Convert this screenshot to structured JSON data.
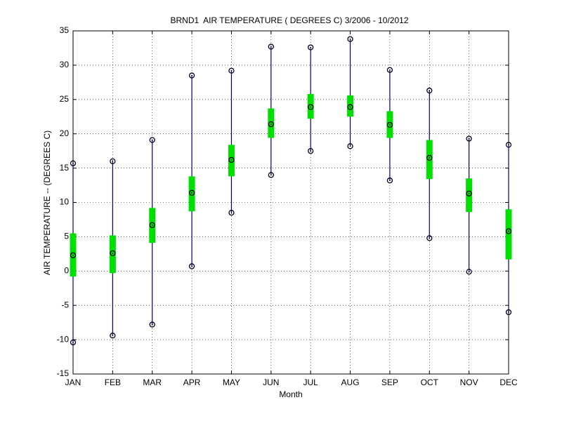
{
  "chart_data": {
    "type": "box",
    "title": "BRND1  AIR TEMPERATURE ( DEGREES C) 3/2006 - 10/2012",
    "x_label": "Month",
    "y_label": "AIR TEMPERATURE -- (DEGREES C)",
    "categories": [
      "JAN",
      "FEB",
      "MAR",
      "APR",
      "MAY",
      "JUN",
      "JUL",
      "AUG",
      "SEP",
      "OCT",
      "NOV",
      "DEC"
    ],
    "min": [
      -10.4,
      -9.4,
      -7.8,
      0.7,
      8.5,
      14.0,
      17.5,
      18.2,
      13.2,
      4.8,
      -0.1,
      -6.0
    ],
    "max": [
      15.7,
      16.0,
      19.1,
      28.5,
      29.2,
      32.7,
      32.6,
      33.8,
      29.3,
      26.3,
      19.3,
      18.4
    ],
    "mean": [
      2.3,
      2.6,
      6.7,
      11.4,
      16.2,
      21.4,
      23.9,
      23.9,
      21.3,
      16.5,
      11.3,
      5.8
    ],
    "box_low": [
      -0.8,
      -0.3,
      4.1,
      8.7,
      13.8,
      19.4,
      22.2,
      22.5,
      19.4,
      13.4,
      8.6,
      1.7
    ],
    "box_high": [
      5.5,
      5.2,
      9.2,
      13.8,
      18.4,
      23.7,
      25.8,
      25.6,
      23.3,
      19.1,
      13.5,
      9.0
    ],
    "whisker_color": "#00007f",
    "box_color": "#00e000",
    "ylim": [
      -15,
      35
    ],
    "yticks": [
      -15,
      -10,
      -5,
      0,
      5,
      10,
      15,
      20,
      25,
      30,
      35
    ],
    "grid": true
  }
}
